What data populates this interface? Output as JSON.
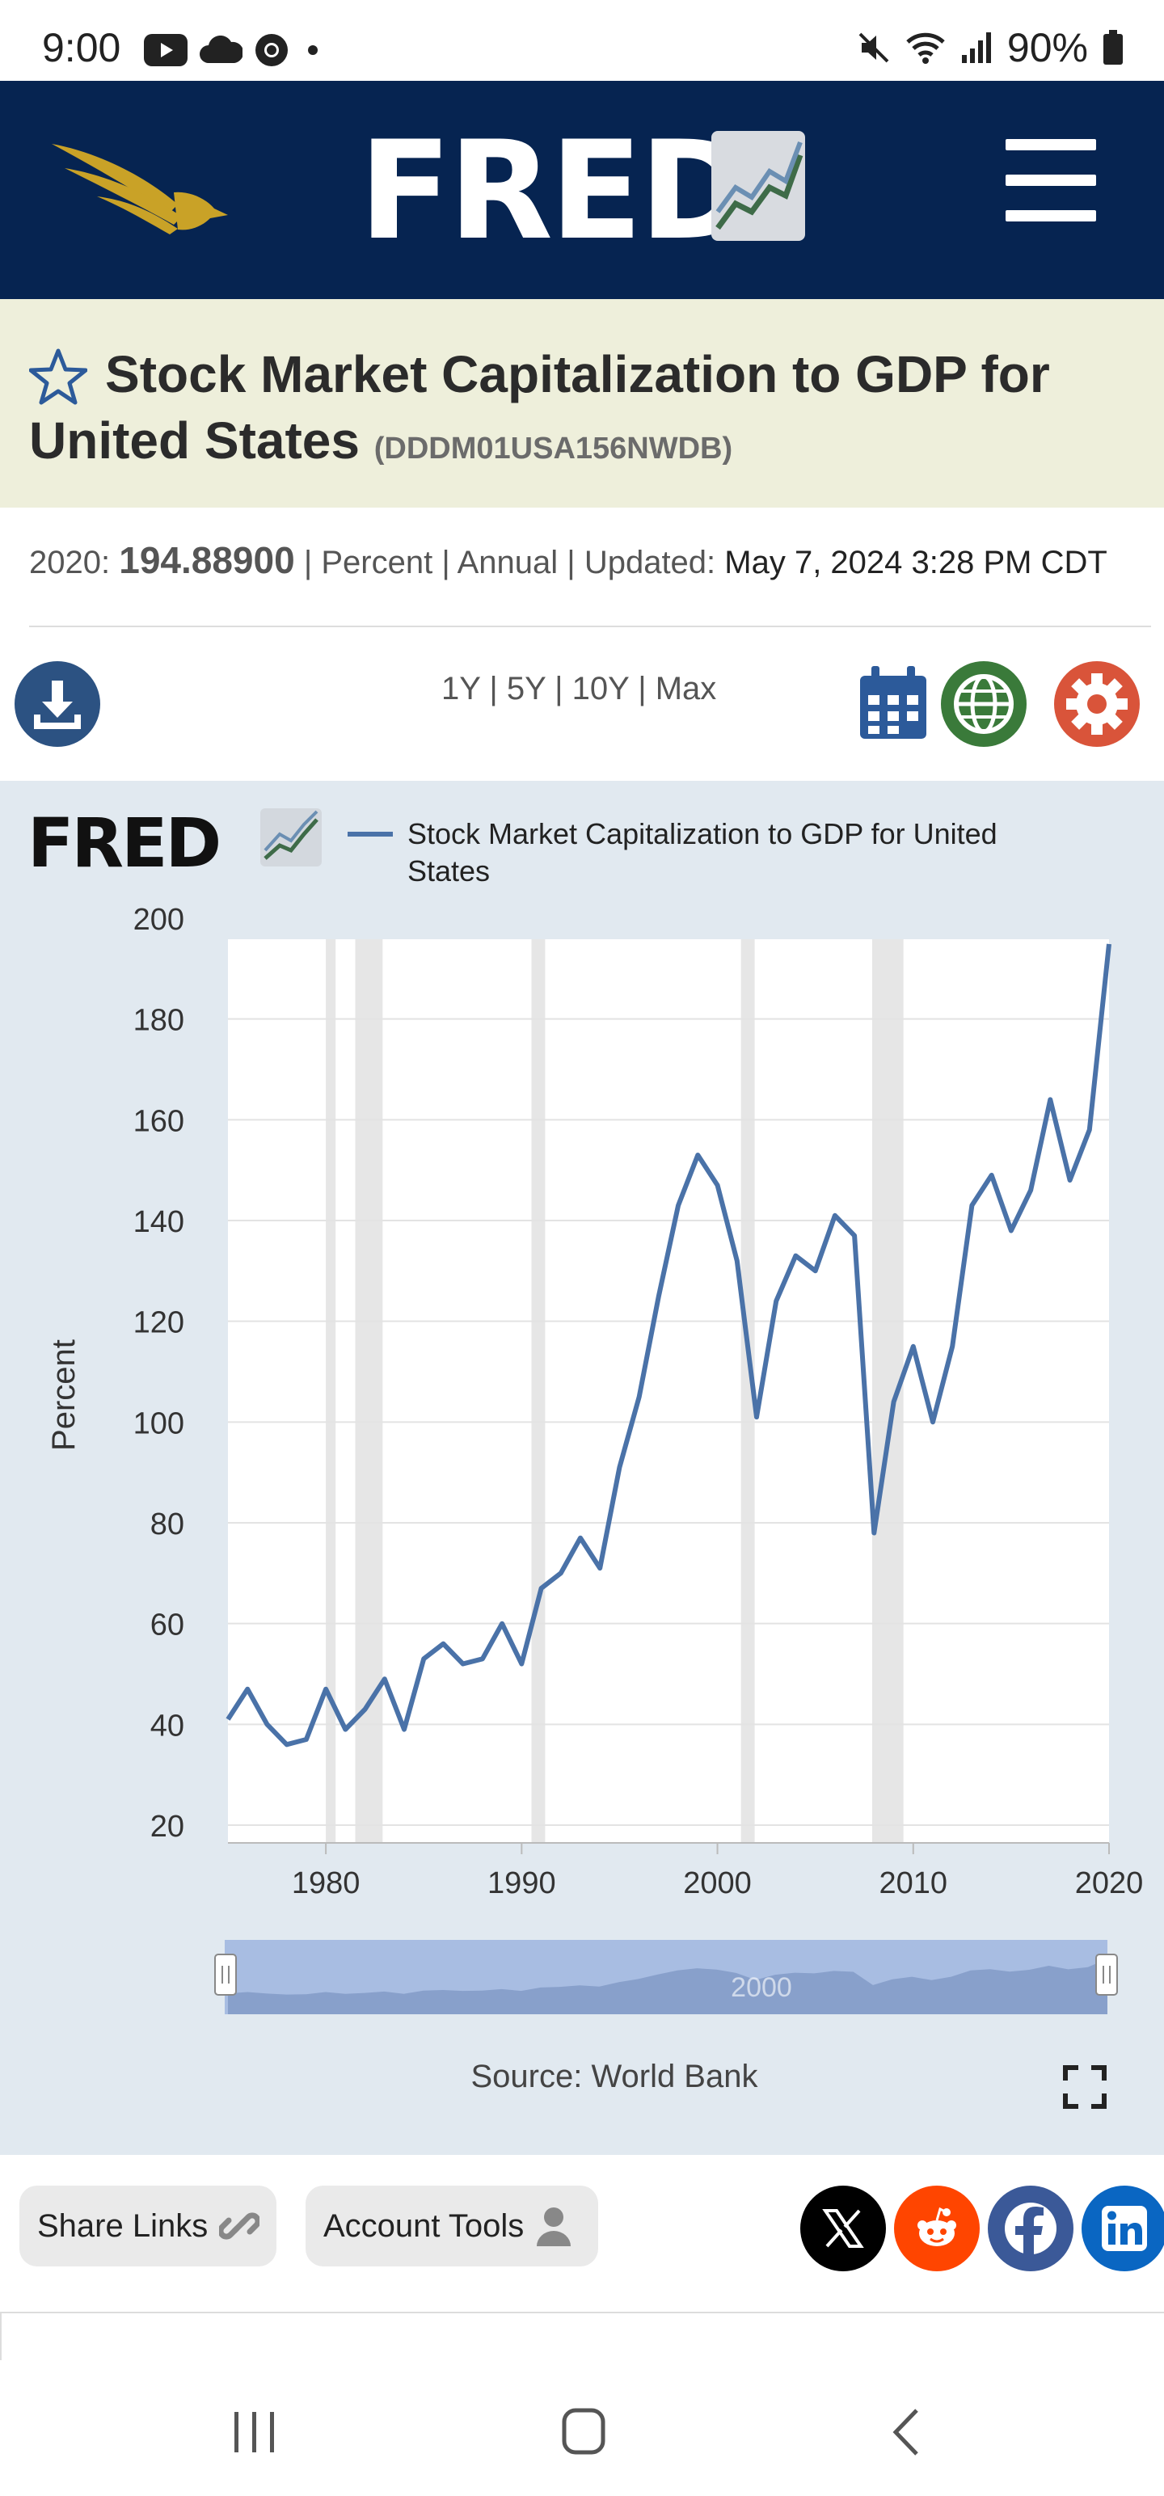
{
  "status_bar": {
    "time": "9:00",
    "battery": "90%",
    "icons_left": [
      "youtube-icon",
      "cloud-icon",
      "chrome-icon",
      "dot-icon"
    ],
    "icons_right": [
      "mute-icon",
      "wifi-icon",
      "signal-icon",
      "battery-icon"
    ]
  },
  "header": {
    "brand": "FRED",
    "menu_icon": "hamburger-menu-icon"
  },
  "series": {
    "title": "Stock Market Capitalization to GDP for United States",
    "id": "(DDDM01USA156NWDB)"
  },
  "meta": {
    "year_label": "2020:",
    "value": "194.88900",
    "units": "Percent",
    "frequency": "Annual",
    "updated_label": "Updated:",
    "updated": "May 7, 2024 3:28 PM CDT"
  },
  "toolbar": {
    "ranges": [
      "1Y",
      "5Y",
      "10Y",
      "Max"
    ],
    "icons": [
      "download-icon",
      "calendar-icon",
      "globe-icon",
      "gear-icon"
    ]
  },
  "chart_data": {
    "type": "line",
    "legend_logo": "FRED",
    "legend_label_line1": "Stock Market Capitalization to GDP for United",
    "legend_label_line2": "States",
    "ylabel": "Percent",
    "ylim": [
      20,
      200
    ],
    "xlim": [
      1975,
      2020
    ],
    "y_ticks": [
      20,
      40,
      60,
      80,
      100,
      120,
      140,
      160,
      180,
      200
    ],
    "x_ticks": [
      1980,
      1990,
      2000,
      2010,
      2020
    ],
    "slider_label": "2000",
    "source": "Source: World Bank",
    "line_color": "#4a72a8",
    "recessions": [
      [
        1980.0,
        1980.5
      ],
      [
        1981.5,
        1982.9
      ],
      [
        1990.5,
        1991.2
      ],
      [
        2001.2,
        2001.9
      ],
      [
        2007.9,
        2009.5
      ]
    ],
    "series": [
      {
        "name": "Stock Market Capitalization to GDP for United States",
        "x": [
          1975,
          1976,
          1977,
          1978,
          1979,
          1980,
          1981,
          1982,
          1983,
          1984,
          1985,
          1986,
          1987,
          1988,
          1989,
          1990,
          1991,
          1992,
          1993,
          1994,
          1995,
          1996,
          1997,
          1998,
          1999,
          2000,
          2001,
          2002,
          2003,
          2004,
          2005,
          2006,
          2007,
          2008,
          2009,
          2010,
          2011,
          2012,
          2013,
          2014,
          2015,
          2016,
          2017,
          2018,
          2019,
          2020
        ],
        "y": [
          41,
          47,
          40,
          36,
          37,
          47,
          39,
          43,
          49,
          39,
          53,
          56,
          52,
          53,
          60,
          52,
          67,
          70,
          77,
          71,
          91,
          105,
          125,
          143,
          153,
          147,
          132,
          101,
          124,
          133,
          130,
          141,
          137,
          78,
          104,
          115,
          100,
          115,
          143,
          149,
          138,
          146,
          164,
          148,
          158,
          194.889
        ]
      }
    ]
  },
  "share": {
    "share_links": "Share Links",
    "account_tools": "Account Tools",
    "socials": [
      "x-icon",
      "reddit-icon",
      "facebook-icon",
      "linkedin-icon"
    ]
  },
  "nav": {
    "buttons": [
      "recent-apps-icon",
      "home-icon",
      "back-icon"
    ]
  }
}
